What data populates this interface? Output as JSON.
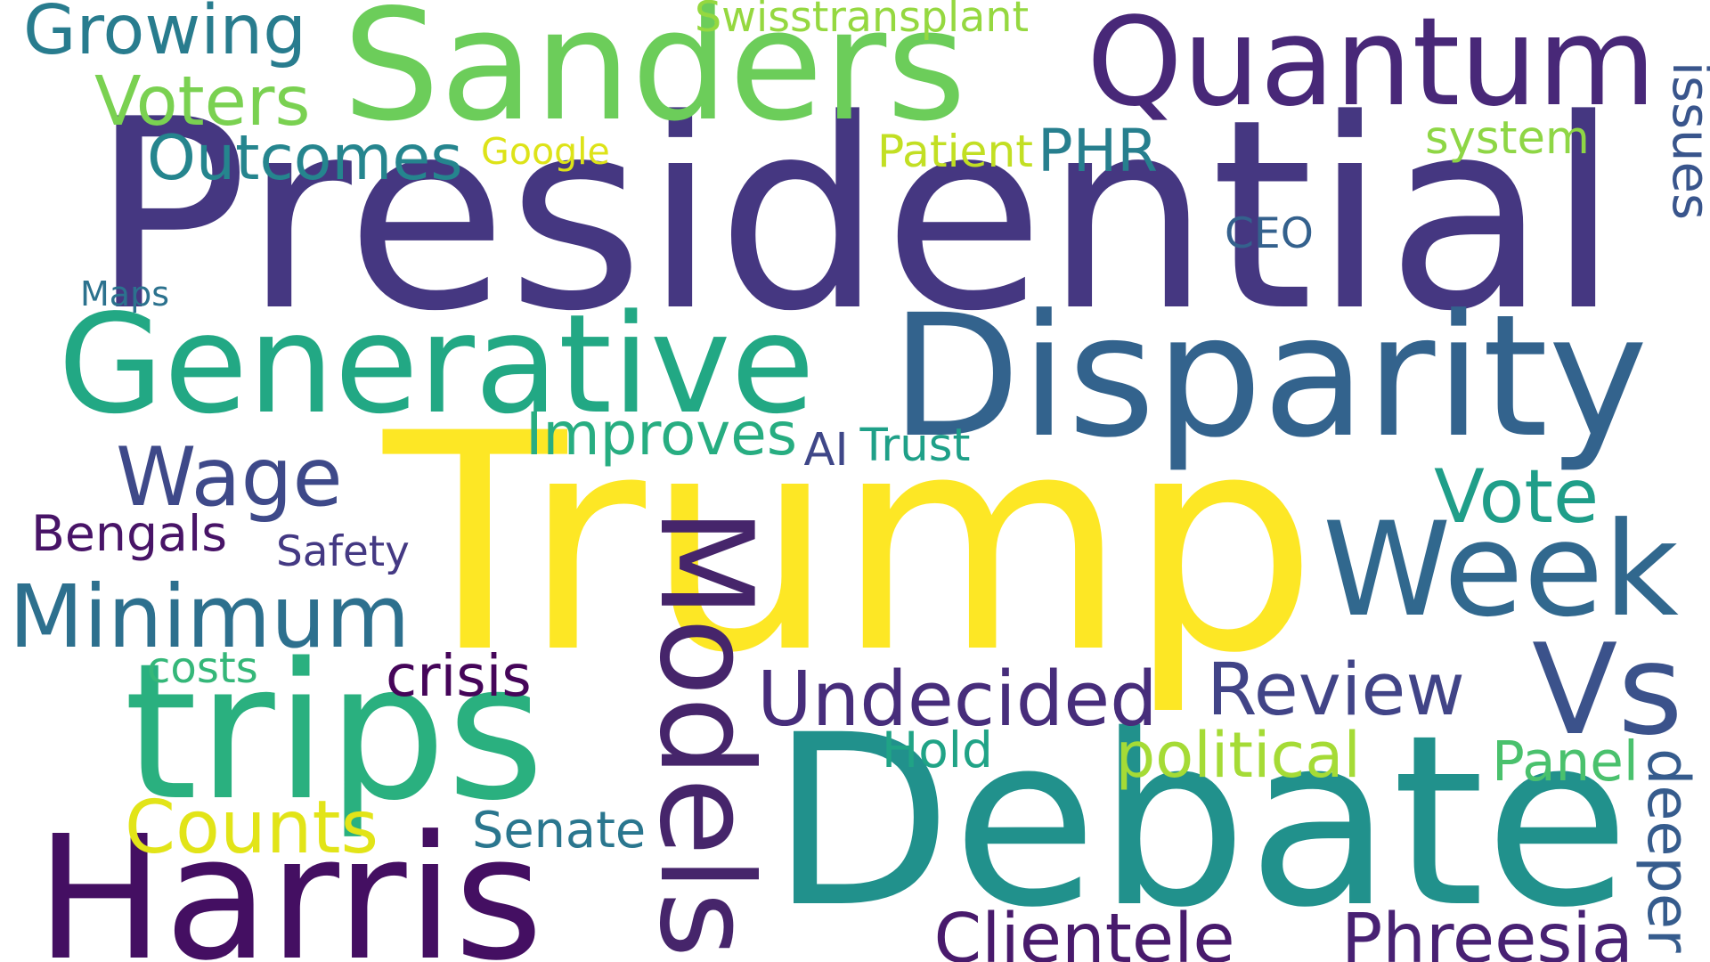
{
  "words": [
    {
      "text": "Trump",
      "color": "#fde725",
      "rotated": false
    },
    {
      "text": "Presidential",
      "color": "#453781",
      "rotated": false
    },
    {
      "text": "Debate",
      "color": "#21918c",
      "rotated": false
    },
    {
      "text": "Disparity",
      "color": "#33638d",
      "rotated": false
    },
    {
      "text": "Sanders",
      "color": "#6ccd5a",
      "rotated": false
    },
    {
      "text": "Quantum",
      "color": "#482878",
      "rotated": false
    },
    {
      "text": "Generative",
      "color": "#22a884",
      "rotated": false
    },
    {
      "text": "trips",
      "color": "#2ab07f",
      "rotated": false
    },
    {
      "text": "Harris",
      "color": "#440f62",
      "rotated": false
    },
    {
      "text": "Week",
      "color": "#31688e",
      "rotated": false
    },
    {
      "text": "Vs",
      "color": "#3b528b",
      "rotated": false
    },
    {
      "text": "Models",
      "color": "#46256b",
      "rotated": true
    },
    {
      "text": "Minimum",
      "color": "#2d708e",
      "rotated": false
    },
    {
      "text": "Undecided",
      "color": "#472d7b",
      "rotated": false
    },
    {
      "text": "Wage",
      "color": "#3e4989",
      "rotated": false
    },
    {
      "text": "Review",
      "color": "#414487",
      "rotated": false
    },
    {
      "text": "Clientele",
      "color": "#481a6c",
      "rotated": false
    },
    {
      "text": "Phreesia",
      "color": "#482173",
      "rotated": false
    },
    {
      "text": "Outcomes",
      "color": "#25858e",
      "rotated": false
    },
    {
      "text": "Voters",
      "color": "#7ad151",
      "rotated": false
    },
    {
      "text": "Growing",
      "color": "#287c8e",
      "rotated": false
    },
    {
      "text": "Counts",
      "color": "#e2e418",
      "rotated": false
    },
    {
      "text": "Vote",
      "color": "#1f9e89",
      "rotated": false
    },
    {
      "text": "Improves",
      "color": "#27ad81",
      "rotated": false
    },
    {
      "text": "PHR",
      "color": "#277f8e",
      "rotated": false
    },
    {
      "text": "Senate",
      "color": "#2a768e",
      "rotated": false
    },
    {
      "text": "political",
      "color": "#a5db36",
      "rotated": false
    },
    {
      "text": "Bengals",
      "color": "#481467",
      "rotated": false
    },
    {
      "text": "issues",
      "color": "#39558c",
      "rotated": true
    },
    {
      "text": "deeper",
      "color": "#365c8d",
      "rotated": true
    },
    {
      "text": "system",
      "color": "#8ed645",
      "rotated": false
    },
    {
      "text": "Panel",
      "color": "#4ac16d",
      "rotated": false
    },
    {
      "text": "CEO",
      "color": "#34618d",
      "rotated": false
    },
    {
      "text": "crisis",
      "color": "#450559",
      "rotated": false
    },
    {
      "text": "Hold",
      "color": "#20a386",
      "rotated": false
    },
    {
      "text": "Patient",
      "color": "#c2df23",
      "rotated": false
    },
    {
      "text": "Google",
      "color": "#dde318",
      "rotated": false
    },
    {
      "text": "Trust",
      "color": "#1fa088",
      "rotated": false
    },
    {
      "text": "Safety",
      "color": "#443983",
      "rotated": false
    },
    {
      "text": "Swisstransplant",
      "color": "#95d840",
      "rotated": false
    },
    {
      "text": "Maps",
      "color": "#2c728e",
      "rotated": false
    },
    {
      "text": "costs",
      "color": "#35b779",
      "rotated": false
    },
    {
      "text": "AI",
      "color": "#3f4788",
      "rotated": false
    }
  ]
}
